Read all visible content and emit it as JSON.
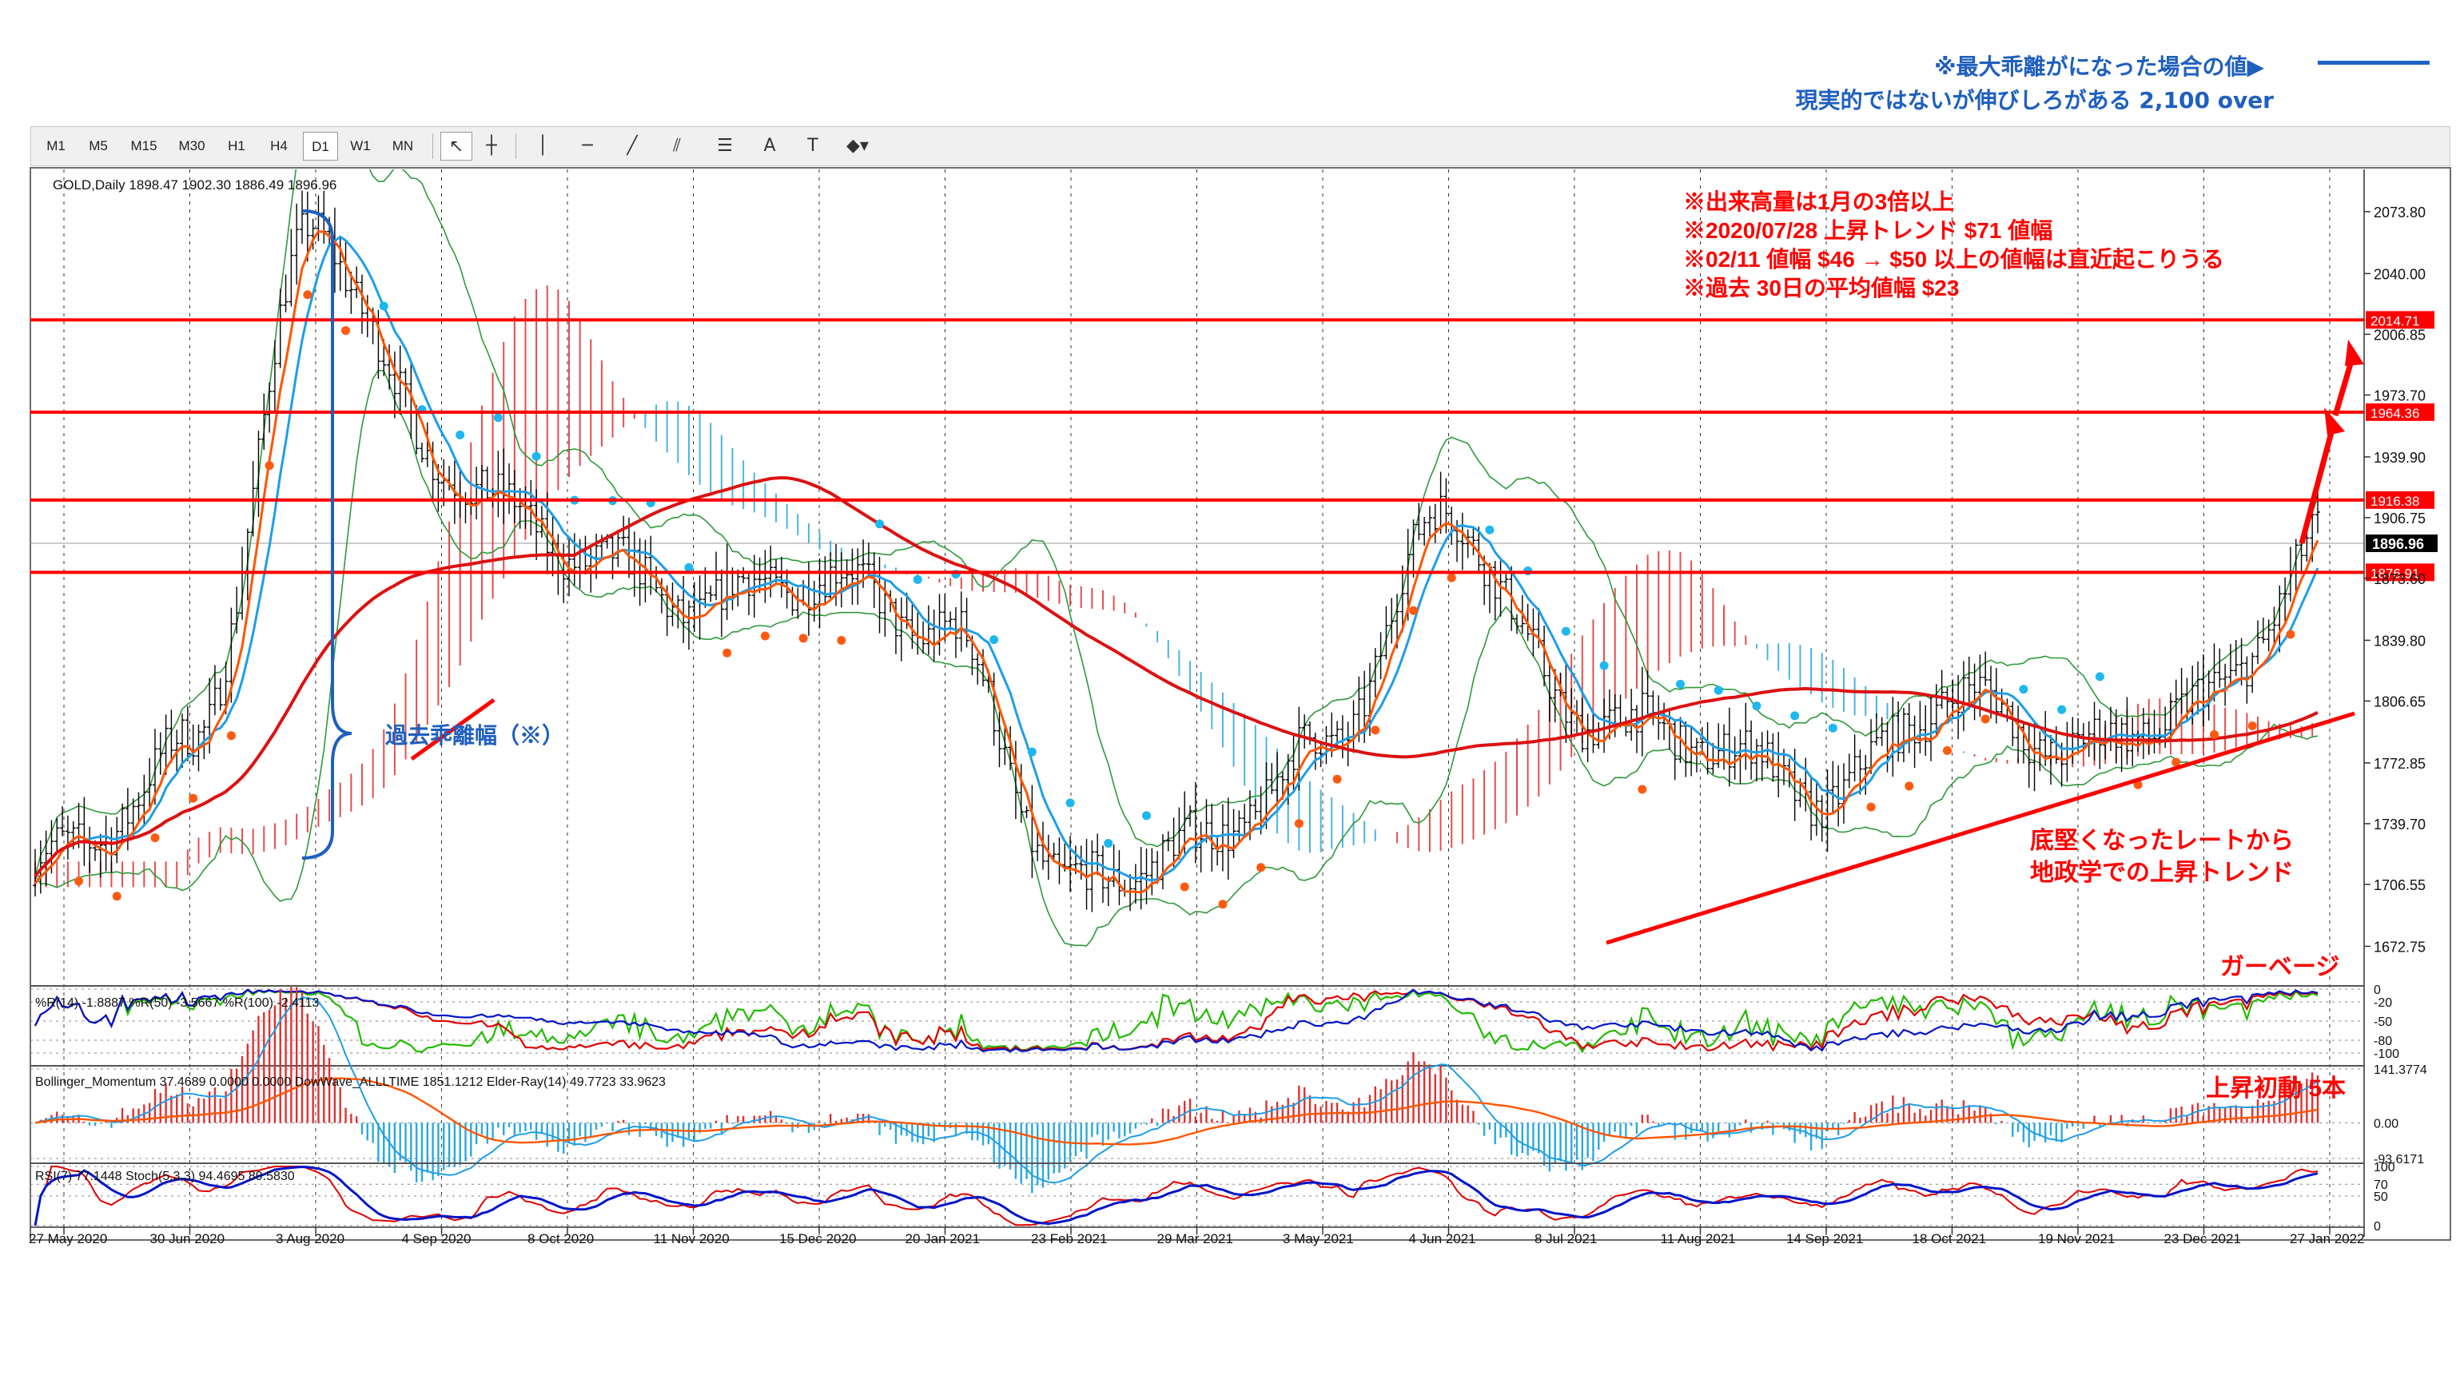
{
  "top_note": {
    "line1": "※最大乖離がになった場合の値▶",
    "line2": "現実的ではないが伸びしろがある 2,100 over"
  },
  "toolbar": {
    "timeframes": [
      "M1",
      "M5",
      "M15",
      "M30",
      "H1",
      "H4",
      "D1",
      "W1",
      "MN"
    ],
    "selected": "D1",
    "tools": [
      {
        "icon": "cursor-arrow-icon",
        "glyph": "↖",
        "selected": true
      },
      {
        "icon": "crosshair-icon",
        "glyph": "┼",
        "selected": false
      },
      {
        "icon": "vertical-line-icon",
        "glyph": "│",
        "selected": false
      },
      {
        "icon": "horizontal-line-icon",
        "glyph": "─",
        "selected": false
      },
      {
        "icon": "trendline-icon",
        "glyph": "╱",
        "selected": false
      },
      {
        "icon": "channel-icon",
        "glyph": "⫽",
        "selected": false
      },
      {
        "icon": "fibonacci-icon",
        "glyph": "☰",
        "selected": false
      },
      {
        "icon": "text-icon",
        "glyph": "A",
        "selected": false
      },
      {
        "icon": "text-label-icon",
        "glyph": "T",
        "selected": false
      },
      {
        "icon": "shapes-dropdown-icon",
        "glyph": "◆▾",
        "selected": false
      }
    ]
  },
  "chart_data": {
    "type": "candlestick",
    "symbol_header": "GOLD,Daily  1898.47 1902.30 1886.49 1896.96",
    "price_axis": {
      "ylim": [
        1652,
        2096
      ],
      "ticks": [
        "2073.80",
        "2040.00",
        "2006.85",
        "1973.70",
        "1939.90",
        "1906.75",
        "1873.60",
        "1839.80",
        "1806.65",
        "1772.85",
        "1739.70",
        "1706.55",
        "1672.75"
      ],
      "tick_values": [
        2073.8,
        2040.0,
        2006.85,
        1973.7,
        1939.9,
        1906.75,
        1873.6,
        1839.8,
        1806.65,
        1772.85,
        1739.7,
        1706.55,
        1672.75
      ]
    },
    "x_axis": {
      "dates": [
        "27 May 2020",
        "30 Jun 2020",
        "3 Aug 2020",
        "4 Sep 2020",
        "8 Oct 2020",
        "11 Nov 2020",
        "15 Dec 2020",
        "20 Jan 2021",
        "23 Feb 2021",
        "29 Mar 2021",
        "3 May 2021",
        "4 Jun 2021",
        "8 Jul 2021",
        "11 Aug 2021",
        "14 Sep 2021",
        "18 Oct 2021",
        "19 Nov 2021",
        "23 Dec 2021",
        "27 Jan 2022"
      ]
    },
    "close_path": [
      [
        "27 May 2020",
        1722
      ],
      [
        "30 Jun 2020",
        1780
      ],
      [
        "3 Aug 2020",
        2065
      ],
      [
        "4 Sep 2020",
        1935
      ],
      [
        "8 Oct 2020",
        1890
      ],
      [
        "11 Nov 2020",
        1860
      ],
      [
        "15 Dec 2020",
        1875
      ],
      [
        "20 Jan 2021",
        1845
      ],
      [
        "23 Feb 2021",
        1705
      ],
      [
        "29 Mar 2021",
        1728
      ],
      [
        "3 May 2021",
        1780
      ],
      [
        "4 Jun 2021",
        1910
      ],
      [
        "8 Jul 2021",
        1800
      ],
      [
        "11 Aug 2021",
        1785
      ],
      [
        "14 Sep 2021",
        1755
      ],
      [
        "18 Oct 2021",
        1810
      ],
      [
        "19 Nov 2021",
        1780
      ],
      [
        "23 Dec 2021",
        1805
      ],
      [
        "27 Jan 2022",
        1897
      ]
    ],
    "last_price": "1896.96",
    "levels": [
      {
        "label": "2014.71",
        "value": 2014.71
      },
      {
        "label": "1964.36",
        "value": 1964.36
      },
      {
        "label": "1916.38",
        "value": 1916.38
      },
      {
        "label": "1876.91",
        "value": 1876.91
      }
    ],
    "annotations": {
      "red_notes": [
        "※出来高量は1月の3倍以上",
        "※2020/07/28 上昇トレンド $71 値幅",
        "※02/11 値幅 $46 → $50 以上の値幅は直近起こりうる",
        "※過去 30日の平均値幅 $23"
      ],
      "past_deviation": "過去乖離幅（※）",
      "trend_note_1": "底堅くなったレートから",
      "trend_note_2": "地政学での上昇トレンド",
      "garbage": "ガーベージ",
      "rise_start": "上昇初動 5本"
    },
    "subpanels": [
      {
        "name": "Williams %R panel",
        "header": "%R(14) -1.8887 %R(50) -3.5667 %R(100) -2.4113",
        "ticks": [
          "0",
          "-20",
          "-50",
          "-80",
          "-100"
        ],
        "tick_values": [
          0,
          -20,
          -50,
          -80,
          -100
        ]
      },
      {
        "name": "Bollinger momentum panel",
        "header": "Bollinger_Momentum 37.4689 0.0000 0.0000  DowWave_ALLLTIME 1851.1212  Elder-Ray(14) 49.7723 33.9623",
        "ticks": [
          "141.3774",
          "0.00",
          "-93.6171"
        ],
        "tick_values": [
          141.3774,
          0.0,
          -93.6171
        ]
      },
      {
        "name": "RSI panel",
        "header": "RSI(7) 77.1448  Stoch(5,3,3) 94.4695 89.5830",
        "ticks": [
          "100",
          "70",
          "50",
          "0"
        ],
        "tick_values": [
          100,
          70,
          50,
          0
        ]
      }
    ],
    "colors": {
      "level": "#ff0000",
      "ma_long": "#dd1111",
      "ma_short": "#ff5500",
      "ma_blue": "#1e9ee8",
      "bollinger": "#2e9a3a",
      "cloud_bull": "#e03030",
      "cloud_bear": "#2aa8e0",
      "dot_blue": "#1eb7f0",
      "dot_orange": "#ff5a10",
      "note_red": "#ff0000",
      "note_blue": "#1f5fbf",
      "rsi_blue": "#0015c8",
      "rsi_red": "#e00000",
      "wpr_green": "#22bb00"
    }
  }
}
